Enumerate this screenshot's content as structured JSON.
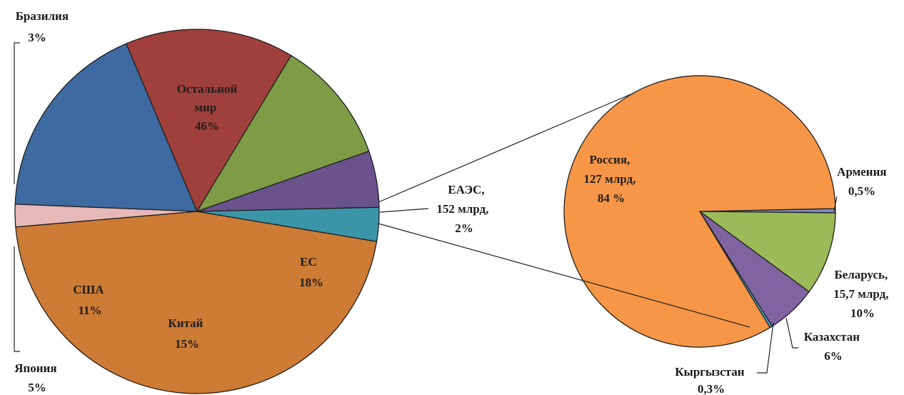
{
  "chart_data": [
    {
      "type": "pie",
      "slices": [
        {
          "label": "Остальной мир",
          "value": 46,
          "display": [
            "Остальной",
            "мир",
            "46%"
          ],
          "color": "#cd7b35"
        },
        {
          "label": "ЕАЭС",
          "value": 2,
          "display": [
            "ЕАЭС,",
            "152 млрд,",
            "2%"
          ],
          "color": "#e6b9b8"
        },
        {
          "label": "ЕС",
          "value": 18,
          "display": [
            "ЕС",
            "18%"
          ],
          "color": "#3d6aa0"
        },
        {
          "label": "Китай",
          "value": 15,
          "display": [
            "Китай",
            "15%"
          ],
          "color": "#a0403d"
        },
        {
          "label": "США",
          "value": 11,
          "display": [
            "США",
            "11%"
          ],
          "color": "#7e9c46"
        },
        {
          "label": "Япония",
          "value": 5,
          "display": [
            "Япония",
            "5%"
          ],
          "color": "#6a528d"
        },
        {
          "label": "Бразилия",
          "value": 3,
          "display": [
            "Бразилия",
            "3%"
          ],
          "color": "#3b95a8"
        }
      ]
    },
    {
      "type": "pie",
      "slices": [
        {
          "label": "Армения",
          "value": 0.5,
          "display": [
            "Армения",
            "0,5%"
          ],
          "color": "#7b8fc4"
        },
        {
          "label": "Беларусь",
          "value": 10,
          "display": [
            "Беларусь,",
            "15,7 млрд,",
            "10%"
          ],
          "color": "#9bbb59"
        },
        {
          "label": "Казахстан",
          "value": 6,
          "display": [
            "Казахстан",
            "6%"
          ],
          "color": "#8064a2"
        },
        {
          "label": "Кыргызстан",
          "value": 0.3,
          "display": [
            "Кыргызстан",
            "0,3%"
          ],
          "color": "#4bacc6"
        },
        {
          "label": "Россия",
          "value": 84,
          "display": [
            "Россия,",
            "127 млрд,",
            "84 %"
          ],
          "color": "#f79646"
        }
      ]
    }
  ]
}
